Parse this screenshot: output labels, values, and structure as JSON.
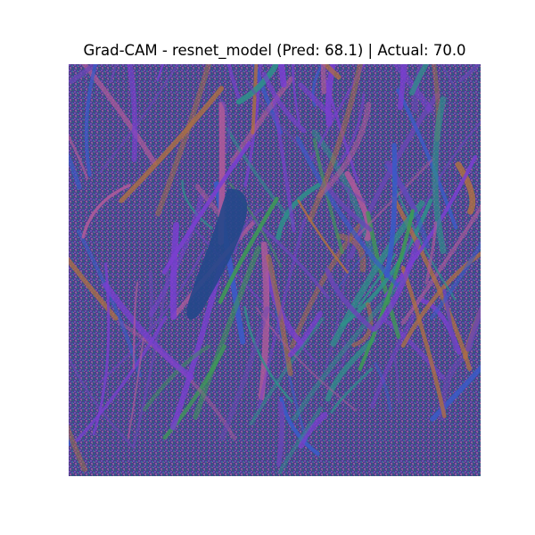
{
  "figure": {
    "title": "Grad-CAM - resnet_model (Pred: 68.1) | Actual: 70.0"
  },
  "image": {
    "subject": "grass-blades-gradcam-overlay",
    "colors": {
      "base": "#4b3c8c",
      "purple": "#7a3fd0",
      "violet": "#6a46b8",
      "blue": "#3a5bc8",
      "teal": "#2f8f8a",
      "green": "#3d9a55",
      "pink": "#b05a9a",
      "orange": "#b07040",
      "dark_blue_region": "#24478a"
    }
  }
}
